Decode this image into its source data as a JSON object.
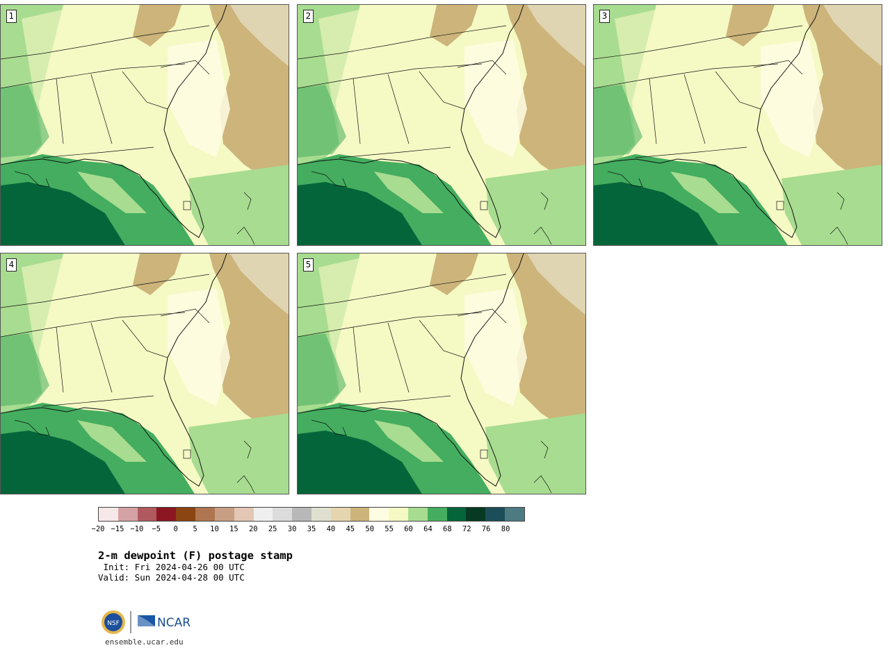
{
  "panels": [
    {
      "label": "1"
    },
    {
      "label": "2"
    },
    {
      "label": "3"
    },
    {
      "label": "4"
    },
    {
      "label": "5"
    }
  ],
  "legend": {
    "colors": [
      "#f6e8e8",
      "#d5a2a6",
      "#b05a60",
      "#8c1622",
      "#8a4513",
      "#ae7650",
      "#c89e84",
      "#e3c7b4",
      "#efefef",
      "#dcdcdc",
      "#b8b8b8",
      "#e0e0d0",
      "#e5d6b0",
      "#ccb47a",
      "#fefde4",
      "#f5f9c4",
      "#a8dc90",
      "#44ad5f",
      "#05653a",
      "#073a22",
      "#1b4e58",
      "#4e7a82"
    ],
    "tick_labels": [
      "−20",
      "−15",
      "−10",
      "−5",
      "0",
      "5",
      "10",
      "15",
      "20",
      "25",
      "30",
      "35",
      "40",
      "45",
      "50",
      "55",
      "60",
      "64",
      "68",
      "72",
      "76",
      "80"
    ]
  },
  "caption": {
    "title": "2-m dewpoint (F) postage stamp",
    "init": " Init: Fri 2024-04-26 00 UTC",
    "valid": "Valid: Sun 2024-04-28 00 UTC"
  },
  "logo": {
    "nsf_text": "NSF",
    "ncar_text": "NCAR",
    "url": "ensemble.ucar.edu"
  }
}
